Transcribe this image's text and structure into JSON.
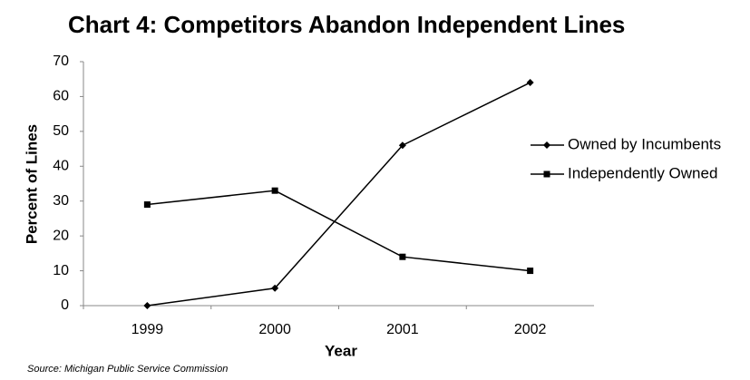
{
  "chart_data": {
    "type": "line",
    "title": "Chart 4: Competitors Abandon Independent Lines",
    "x_label": "Year",
    "y_label": "Percent of Lines",
    "source": "Source: Michigan Public Service Commission",
    "categories": [
      "1999",
      "2000",
      "2001",
      "2002"
    ],
    "series": [
      {
        "name": "Owned by Incumbents",
        "color": "#000000",
        "marker": "diamond",
        "values": [
          0,
          5,
          46,
          64
        ]
      },
      {
        "name": "Independently Owned",
        "color": "#000000",
        "marker": "square",
        "values": [
          29,
          33,
          14,
          10
        ]
      }
    ],
    "ylim": [
      0,
      70
    ],
    "yticks": [
      0,
      10,
      20,
      30,
      40,
      50,
      60,
      70
    ],
    "grid": false,
    "legend": "right"
  }
}
